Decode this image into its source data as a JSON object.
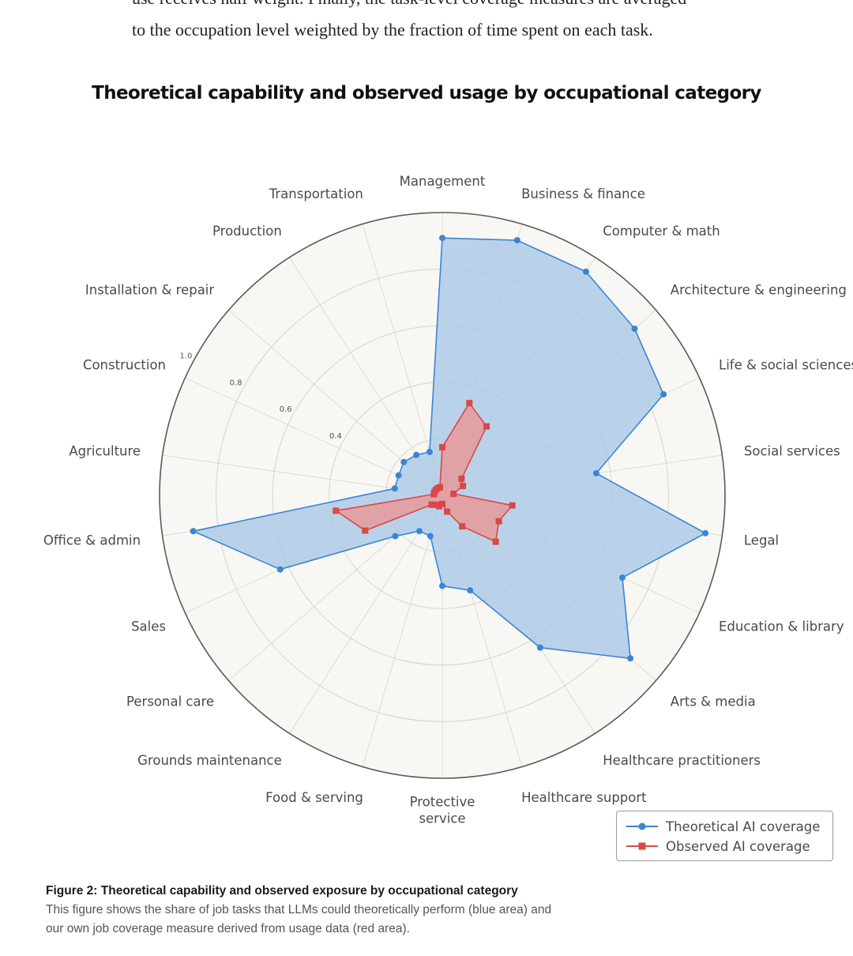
{
  "article": {
    "line1": "use receives half weight. Finally, the task-level coverage measures are averaged",
    "line2": "to the occupation level weighted by the fraction of time spent on each task."
  },
  "chart_data": {
    "type": "radar",
    "title": "Theoretical capability and observed usage by occupational category",
    "categories": [
      "Management",
      "Business & finance",
      "Computer & math",
      "Architecture & engineering",
      "Life & social sciences",
      "Social services",
      "Legal",
      "Education & library",
      "Arts & media",
      "Healthcare practitioners",
      "Healthcare support",
      "Protective\nservice",
      "Food & serving",
      "Grounds maintenance",
      "Personal care",
      "Sales",
      "Office & admin",
      "Agriculture",
      "Construction",
      "Installation & repair",
      "Production",
      "Transportation"
    ],
    "rlim": [
      0,
      1.0
    ],
    "r_ticks": [
      0.4,
      0.6,
      0.8,
      1.0
    ],
    "r_tick_labels": [
      "0.4",
      "0.6",
      "0.8",
      "1.0"
    ],
    "grid": true,
    "legend_position": "bottom-right",
    "series": [
      {
        "name": "Theoretical AI coverage",
        "color": "#3a85d6",
        "fill": "#a8c8e6",
        "marker": "circle",
        "values": [
          0.91,
          0.94,
          0.94,
          0.9,
          0.86,
          0.55,
          0.94,
          0.7,
          0.88,
          0.64,
          0.35,
          0.32,
          0.15,
          0.15,
          0.22,
          0.63,
          0.89,
          0.17,
          0.17,
          0.18,
          0.17,
          0.16
        ]
      },
      {
        "name": "Observed AI coverage",
        "color": "#d94848",
        "fill": "#e79a9a",
        "marker": "square",
        "values": [
          0.17,
          0.34,
          0.29,
          0.09,
          0.08,
          0.04,
          0.25,
          0.22,
          0.25,
          0.13,
          0.06,
          0.03,
          0.04,
          0.04,
          0.05,
          0.3,
          0.38,
          0.03,
          0.03,
          0.03,
          0.03,
          0.03
        ]
      }
    ]
  },
  "caption": {
    "title": "Figure 2: Theoretical capability and observed exposure by occupational category",
    "body": "This figure shows the share of job tasks that LLMs could theoretically perform (blue area) and our own job coverage measure derived from usage data (red area)."
  }
}
